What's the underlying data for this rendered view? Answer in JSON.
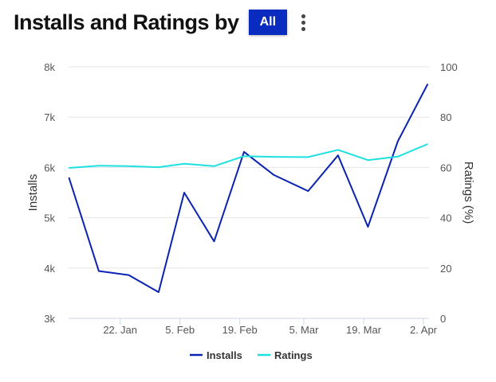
{
  "header": {
    "title": "Installs and Ratings by",
    "filter_label": "All",
    "menu_icon": "kebab-menu-icon"
  },
  "chart_data": {
    "type": "line",
    "x": [
      "2024-01-10",
      "2024-01-17",
      "2024-01-24",
      "2024-01-31",
      "2024-02-06",
      "2024-02-13",
      "2024-02-20",
      "2024-02-27",
      "2024-03-06",
      "2024-03-13",
      "2024-03-20",
      "2024-03-27",
      "2024-04-03"
    ],
    "x_ticks": [
      {
        "date": "2024-01-22",
        "label": "22. Jan"
      },
      {
        "date": "2024-02-05",
        "label": "5. Feb"
      },
      {
        "date": "2024-02-19",
        "label": "19. Feb"
      },
      {
        "date": "2024-03-05",
        "label": "5. Mar"
      },
      {
        "date": "2024-03-19",
        "label": "19. Mar"
      },
      {
        "date": "2024-04-02",
        "label": "2. Apr"
      }
    ],
    "series": [
      {
        "name": "Installs",
        "axis": "left",
        "color": "#0a23b0",
        "values": [
          5800,
          3940,
          3860,
          3520,
          5500,
          4530,
          6310,
          5850,
          5530,
          6240,
          4820,
          6520,
          7660
        ]
      },
      {
        "name": "Ratings",
        "axis": "right",
        "color": "#1de0e0",
        "values": [
          59.8,
          60.7,
          60.5,
          60.1,
          61.5,
          60.5,
          64.5,
          64.2,
          64.1,
          67,
          62.9,
          64.3,
          69.3
        ]
      }
    ],
    "ylabel": "Installs",
    "ylim": [
      3000,
      8000
    ],
    "y_ticks": [
      "3k",
      "4k",
      "5k",
      "6k",
      "7k",
      "8k"
    ],
    "y2label": "Ratings (%)",
    "y2lim": [
      0,
      100
    ],
    "y2_ticks": [
      "0",
      "20",
      "40",
      "60",
      "80",
      "100"
    ],
    "grid": true,
    "legend": "bottom"
  }
}
